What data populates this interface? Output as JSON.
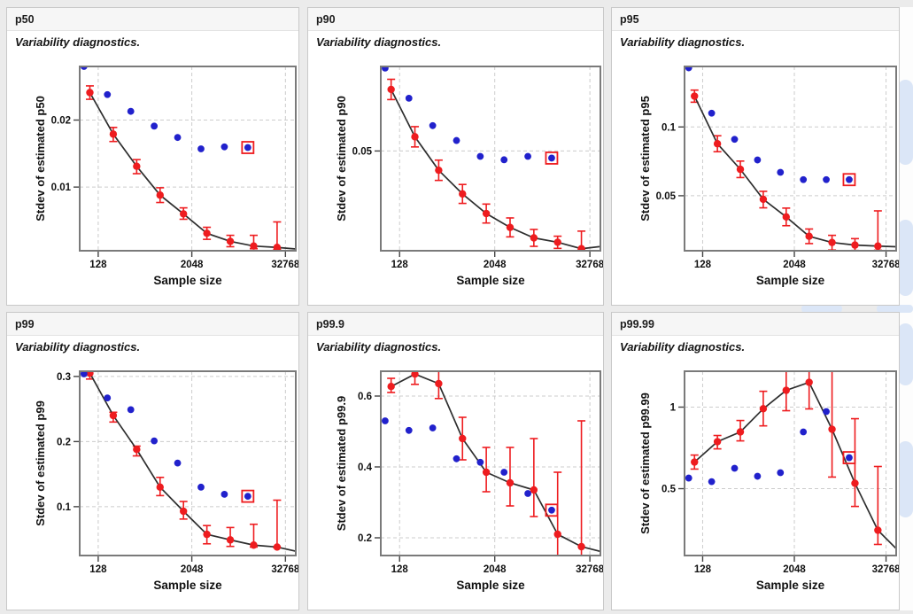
{
  "page": {
    "background": "#ebebeb",
    "strip_background": "#fdfdfd",
    "blob_color": "#dbe6f7"
  },
  "common": {
    "subtitle": "Variability diagnostics.",
    "xlabel": "Sample size",
    "x_scale": "log2",
    "x_ticks": [
      128,
      2048,
      32768
    ],
    "xlim": [
      74,
      44500
    ],
    "colors": {
      "red": "#ee1c1f",
      "blue": "#2121cc",
      "line": "#2e2e2e",
      "grid": "#cccccc",
      "frame": "#7a7a7a",
      "tick": "#444444",
      "text": "#111111",
      "highlight_box": "#ee1c1f"
    }
  },
  "chart_data": [
    {
      "type": "scatter",
      "title": "p50",
      "subtitle": "Variability diagnostics.",
      "xlabel": "Sample size",
      "ylabel": "Stdev of estimated p50",
      "x_scale": "log2",
      "xlim": [
        74,
        44500
      ],
      "x_ticks": [
        128,
        2048,
        32768
      ],
      "ylim": [
        0.0005,
        0.028
      ],
      "y_ticks": [
        "0.01",
        "0.02"
      ],
      "series": [
        {
          "name": "red-line-with-error-bars",
          "x": [
            100,
            200,
            400,
            800,
            1600,
            3200,
            6400,
            12800,
            25600,
            51200
          ],
          "y": [
            0.0241,
            0.0179,
            0.0131,
            0.0088,
            0.006,
            0.0031,
            0.0019,
            0.0012,
            0.001,
            0.0007
          ],
          "lo": [
            0.0231,
            0.0168,
            0.012,
            0.0077,
            0.0052,
            0.0022,
            0.0011,
            0.0008,
            0.0007,
            0.0003
          ],
          "hi": [
            0.0251,
            0.0189,
            0.0141,
            0.0099,
            0.0069,
            0.004,
            0.0028,
            0.0028,
            0.0048,
            0.0012
          ]
        },
        {
          "name": "blue-dots",
          "x": [
            84,
            168,
            336,
            672,
            1344,
            2688,
            5376,
            10752
          ],
          "y": [
            0.028,
            0.0238,
            0.0213,
            0.0191,
            0.0174,
            0.0157,
            0.016,
            0.0159
          ]
        }
      ],
      "highlight": {
        "series": 1,
        "index": 7
      }
    },
    {
      "type": "scatter",
      "title": "p90",
      "subtitle": "Variability diagnostics.",
      "xlabel": "Sample size",
      "ylabel": "Stdev of estimated p90",
      "x_scale": "log2",
      "xlim": [
        74,
        44500
      ],
      "x_ticks": [
        128,
        2048,
        32768
      ],
      "ylim": [
        0.0205,
        0.075
      ],
      "y_ticks": [
        "0.05"
      ],
      "series": [
        {
          "name": "red-line-with-error-bars",
          "x": [
            100,
            200,
            400,
            800,
            1600,
            3200,
            6400,
            12800,
            25600,
            51200
          ],
          "y": [
            0.0682,
            0.0542,
            0.0443,
            0.0373,
            0.0315,
            0.0274,
            0.0243,
            0.023,
            0.0211,
            0.0219
          ],
          "lo": [
            0.0652,
            0.0512,
            0.0413,
            0.0345,
            0.0287,
            0.0246,
            0.0218,
            0.0212,
            0.0207,
            0.0211
          ],
          "hi": [
            0.0712,
            0.0572,
            0.0473,
            0.0401,
            0.0343,
            0.0302,
            0.0268,
            0.0248,
            0.0263,
            0.0227
          ]
        },
        {
          "name": "blue-dots",
          "x": [
            84,
            168,
            336,
            672,
            1344,
            2688,
            5376,
            10752
          ],
          "y": [
            0.0745,
            0.0656,
            0.0575,
            0.0531,
            0.0484,
            0.0474,
            0.0484,
            0.0479
          ]
        }
      ],
      "highlight": {
        "series": 1,
        "index": 7
      }
    },
    {
      "type": "scatter",
      "title": "p95",
      "subtitle": "Variability diagnostics.",
      "xlabel": "Sample size",
      "ylabel": "Stdev of estimated p95",
      "x_scale": "log2",
      "xlim": [
        74,
        44500
      ],
      "x_ticks": [
        128,
        2048,
        32768
      ],
      "ylim": [
        0.01,
        0.144
      ],
      "y_ticks": [
        "0.05",
        "0.1"
      ],
      "series": [
        {
          "name": "red-line-with-error-bars",
          "x": [
            100,
            200,
            400,
            800,
            1600,
            3200,
            6400,
            12800,
            25600,
            51200
          ],
          "y": [
            0.1224,
            0.0878,
            0.0692,
            0.0474,
            0.0346,
            0.0205,
            0.016,
            0.0141,
            0.0134,
            0.0128
          ],
          "lo": [
            0.118,
            0.082,
            0.0632,
            0.0412,
            0.0282,
            0.0152,
            0.0105,
            0.0102,
            0.0104,
            0.0112
          ],
          "hi": [
            0.1268,
            0.0936,
            0.0752,
            0.0532,
            0.041,
            0.0258,
            0.0212,
            0.0188,
            0.039,
            0.0146
          ]
        },
        {
          "name": "blue-dots",
          "x": [
            84,
            168,
            336,
            672,
            1344,
            2688,
            5376,
            10752
          ],
          "y": [
            0.143,
            0.11,
            0.091,
            0.076,
            0.067,
            0.0617,
            0.0617,
            0.0617
          ]
        }
      ],
      "highlight": {
        "series": 1,
        "index": 7
      }
    },
    {
      "type": "scatter",
      "title": "p99",
      "subtitle": "Variability diagnostics.",
      "xlabel": "Sample size",
      "ylabel": "Stdev of estimated p99",
      "x_scale": "log2",
      "xlim": [
        74,
        44500
      ],
      "x_ticks": [
        128,
        2048,
        32768
      ],
      "ylim": [
        0.025,
        0.308
      ],
      "y_ticks": [
        "0.1",
        "0.2",
        "0.3"
      ],
      "series": [
        {
          "name": "red-line-with-error-bars",
          "x": [
            100,
            200,
            400,
            800,
            1600,
            3200,
            6400,
            12800,
            25600,
            51200
          ],
          "y": [
            0.305,
            0.24,
            0.188,
            0.13,
            0.093,
            0.0575,
            0.049,
            0.041,
            0.038,
            0.03
          ],
          "lo": [
            0.296,
            0.23,
            0.178,
            0.117,
            0.081,
            0.043,
            0.039,
            0.038,
            0.037,
            0.028
          ],
          "hi": [
            0.315,
            0.245,
            0.193,
            0.145,
            0.108,
            0.071,
            0.068,
            0.073,
            0.11,
            0.033
          ]
        },
        {
          "name": "blue-dots",
          "x": [
            84,
            168,
            336,
            672,
            1344,
            2688,
            5376,
            10752
          ],
          "y": [
            0.304,
            0.267,
            0.249,
            0.201,
            0.167,
            0.13,
            0.119,
            0.116
          ]
        }
      ],
      "highlight": {
        "series": 1,
        "index": 7
      }
    },
    {
      "type": "scatter",
      "title": "p99.9",
      "subtitle": "Variability diagnostics.",
      "xlabel": "Sample size",
      "ylabel": "Stdev of estimated p99.9",
      "x_scale": "log2",
      "xlim": [
        74,
        44500
      ],
      "x_ticks": [
        128,
        2048,
        32768
      ],
      "ylim": [
        0.15,
        0.67
      ],
      "y_ticks": [
        "0.2",
        "0.4",
        "0.6"
      ],
      "series": [
        {
          "name": "red-line-with-error-bars",
          "x": [
            100,
            200,
            400,
            800,
            1600,
            3200,
            6400,
            12800,
            25600,
            51200
          ],
          "y": [
            0.627,
            0.662,
            0.635,
            0.48,
            0.385,
            0.355,
            0.335,
            0.21,
            0.175,
            0.158
          ],
          "lo": [
            0.61,
            0.633,
            0.593,
            0.42,
            0.33,
            0.29,
            0.26,
            0.15,
            0.15,
            0.15
          ],
          "hi": [
            0.65,
            0.68,
            0.68,
            0.54,
            0.455,
            0.455,
            0.48,
            0.385,
            0.53,
            0.166
          ]
        },
        {
          "name": "blue-dots",
          "x": [
            84,
            168,
            336,
            672,
            1344,
            2688,
            5376,
            10752
          ],
          "y": [
            0.53,
            0.503,
            0.51,
            0.423,
            0.413,
            0.385,
            0.325,
            0.278
          ]
        }
      ],
      "highlight": {
        "series": 1,
        "index": 7
      }
    },
    {
      "type": "scatter",
      "title": "p99.99",
      "subtitle": "Variability diagnostics.",
      "xlabel": "Sample size",
      "ylabel": "Stdev of estimated p99.99",
      "x_scale": "log2",
      "xlim": [
        74,
        44500
      ],
      "x_ticks": [
        128,
        2048,
        32768
      ],
      "ylim": [
        0.09,
        1.22
      ],
      "y_ticks": [
        "0.5",
        "1"
      ],
      "series": [
        {
          "name": "red-line-with-error-bars",
          "x": [
            100,
            200,
            400,
            800,
            1600,
            3200,
            6400,
            12800,
            25600,
            51200
          ],
          "y": [
            0.663,
            0.788,
            0.848,
            0.99,
            1.103,
            1.152,
            0.864,
            0.533,
            0.245,
            0.104
          ],
          "lo": [
            0.62,
            0.744,
            0.793,
            0.885,
            0.978,
            0.989,
            0.571,
            0.391,
            0.158,
            0.093
          ],
          "hi": [
            0.706,
            0.826,
            0.918,
            1.097,
            1.23,
            1.23,
            1.23,
            0.929,
            0.636,
            0.12
          ]
        },
        {
          "name": "blue-dots",
          "x": [
            84,
            168,
            336,
            672,
            1344,
            2688,
            5376,
            10752
          ],
          "y": [
            0.565,
            0.543,
            0.625,
            0.576,
            0.598,
            0.848,
            0.973,
            0.69
          ]
        }
      ],
      "highlight": {
        "series": 1,
        "index": 7
      }
    }
  ]
}
